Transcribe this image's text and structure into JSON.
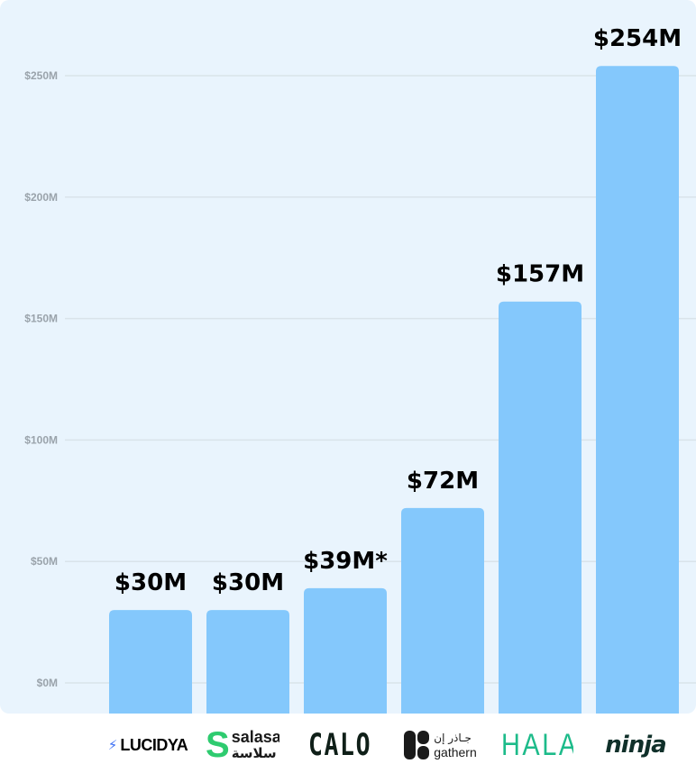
{
  "chart_data": {
    "type": "bar",
    "categories": [
      "LUCIDYA",
      "salasa",
      "CALO",
      "gathern",
      "HALA",
      "ninja"
    ],
    "values": [
      30,
      30,
      39,
      72,
      157,
      254
    ],
    "value_labels": [
      "$30M",
      "$30M",
      "$39M*",
      "$72M",
      "$157M",
      "$254M"
    ],
    "y_ticks": [
      0,
      50,
      100,
      150,
      200,
      250
    ],
    "y_tick_labels": [
      "$0M",
      "$50M",
      "$100M",
      "$150M",
      "$200M",
      "$250M"
    ],
    "ylim": [
      0,
      260
    ],
    "grid": true,
    "colors": {
      "background": "#e9f4fd",
      "bar": "#84c8fc",
      "grid": "#d9e3ea",
      "tick_text": "#9aa3ab",
      "label_text": "#000000"
    }
  },
  "logos": [
    {
      "name": "lucidya",
      "text": "LUCIDYA",
      "icon": "bolt-icon",
      "color": "#000000",
      "accent": "#3b6ff5"
    },
    {
      "name": "salasa",
      "text": "salasa",
      "subtext": "سلاسة",
      "icon": "s-mark-icon",
      "color": "#1a1a1a",
      "accent": "#2ecb6f"
    },
    {
      "name": "calo",
      "text": "CALO",
      "color": "#0f1f18"
    },
    {
      "name": "gathern",
      "text": "gathern",
      "subtext": "جـاذر إن",
      "icon": "gathern-mark-icon",
      "color": "#1a1a1a"
    },
    {
      "name": "hala",
      "text": "HALA",
      "color": "#1dbb8a"
    },
    {
      "name": "ninja",
      "text": "ninja",
      "color": "#10302a"
    }
  ]
}
